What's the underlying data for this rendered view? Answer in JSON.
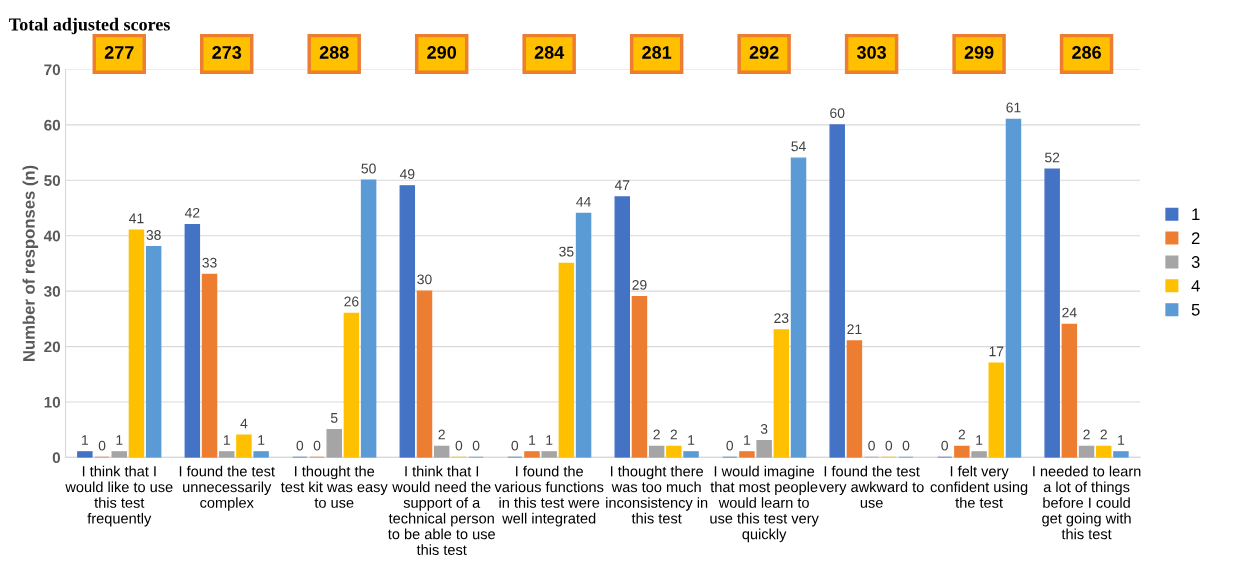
{
  "chart_data": {
    "type": "bar",
    "title": "Total adjusted scores",
    "ylabel": "Number of responses (n)",
    "categories": [
      "I think that I\nwould like to use\nthis test\nfrequently",
      "I found the test\nunnecessarily\ncomplex",
      "I thought the\ntest kit was easy\nto use",
      "I think that I\nwould need the\nsupport of a\ntechnical person\nto be able to use\nthis test",
      "I found the\nvarious functions\nin this test were\nwell integrated",
      "I thought there\nwas too much\ninconsistency in\nthis test",
      "I would imagine\nthat most people\nwould learn to\nuse this test very\nquickly",
      "I found the test\nvery awkward to\nuse",
      "I felt very\nconfident using\nthe test",
      "I needed to learn\na lot of things\nbefore I could\nget going with\nthis test"
    ],
    "series": [
      {
        "name": "1",
        "color": "#4472c4",
        "values": [
          1,
          42,
          0,
          49,
          0,
          47,
          0,
          60,
          0,
          52
        ]
      },
      {
        "name": "2",
        "color": "#ed7d31",
        "values": [
          0,
          33,
          0,
          30,
          1,
          29,
          1,
          21,
          2,
          24
        ]
      },
      {
        "name": "3",
        "color": "#a5a5a5",
        "values": [
          1,
          1,
          5,
          2,
          1,
          2,
          3,
          0,
          1,
          2
        ]
      },
      {
        "name": "4",
        "color": "#ffc000",
        "values": [
          41,
          4,
          26,
          0,
          35,
          2,
          23,
          0,
          17,
          2
        ]
      },
      {
        "name": "5",
        "color": "#5b9bd5",
        "values": [
          38,
          1,
          50,
          0,
          44,
          1,
          54,
          0,
          61,
          1
        ]
      }
    ],
    "annotations": [
      "277",
      "273",
      "288",
      "290",
      "284",
      "281",
      "292",
      "303",
      "299",
      "286"
    ],
    "ylim": [
      0,
      70
    ],
    "yticks": [
      0,
      10,
      20,
      30,
      40,
      50,
      60,
      70
    ],
    "grid": "y",
    "legend": "right",
    "data_labels": true
  }
}
